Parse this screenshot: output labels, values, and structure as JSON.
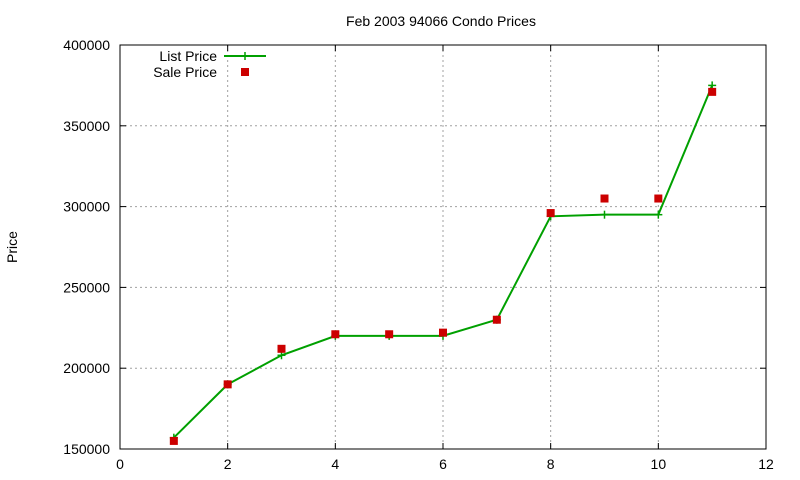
{
  "chart_data": {
    "type": "line",
    "title": "Feb 2003 94066 Condo Prices",
    "xlabel": "",
    "ylabel": "Price",
    "xlim": [
      0,
      12
    ],
    "ylim": [
      150000,
      400000
    ],
    "xticks": [
      0,
      2,
      4,
      6,
      8,
      10,
      12
    ],
    "yticks": [
      150000,
      200000,
      250000,
      300000,
      350000,
      400000
    ],
    "grid": true,
    "legend_position": "top-left",
    "series": [
      {
        "name": "List Price",
        "style": "line-plus",
        "color": "#00a000",
        "x": [
          1,
          2,
          3,
          4,
          5,
          6,
          7,
          8,
          9,
          10,
          11
        ],
        "y": [
          157000,
          190000,
          208000,
          220000,
          220000,
          220000,
          230000,
          294000,
          295000,
          295000,
          375000
        ]
      },
      {
        "name": "Sale Price",
        "style": "square",
        "color": "#cc0000",
        "x": [
          1,
          2,
          3,
          4,
          5,
          6,
          7,
          8,
          9,
          10,
          11
        ],
        "y": [
          155000,
          190000,
          212000,
          221000,
          221000,
          222000,
          230000,
          296000,
          305000,
          305000,
          371000
        ]
      }
    ]
  }
}
